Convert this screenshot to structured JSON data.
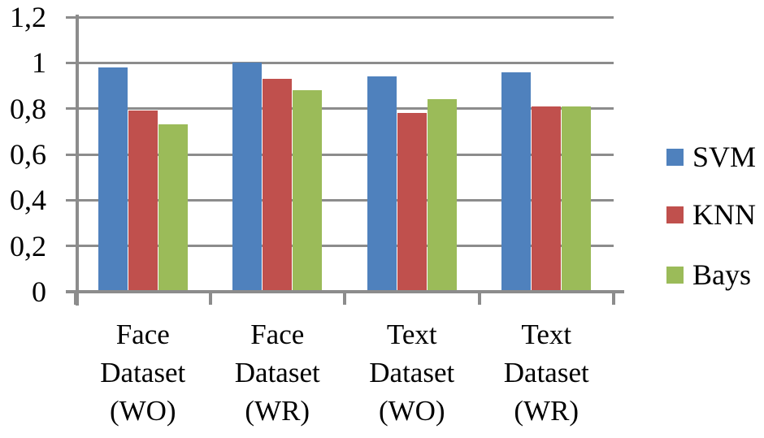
{
  "chart_data": {
    "type": "bar",
    "title": "",
    "xlabel": "",
    "ylabel": "",
    "categories": [
      "Face Dataset (WO)",
      "Face Dataset (WR)",
      "Text Dataset (WO)",
      "Text Dataset (WR)"
    ],
    "category_lines": [
      [
        "Face",
        "Dataset",
        "(WO)"
      ],
      [
        "Face",
        "Dataset",
        "(WR)"
      ],
      [
        "Text",
        "Dataset",
        "(WO)"
      ],
      [
        "Text",
        "Dataset",
        "(WR)"
      ]
    ],
    "series": [
      {
        "name": "SVM",
        "color": "#4F81BD",
        "values": [
          0.98,
          1.0,
          0.94,
          0.96
        ]
      },
      {
        "name": "KNN",
        "color": "#C0504D",
        "values": [
          0.79,
          0.93,
          0.78,
          0.81
        ]
      },
      {
        "name": "Bays",
        "color": "#9BBB59",
        "values": [
          0.73,
          0.88,
          0.84,
          0.81
        ]
      }
    ],
    "ylim": [
      0,
      1.2
    ],
    "ytick_step": 0.2,
    "yticks": [
      0,
      0.2,
      0.4,
      0.6,
      0.8,
      1.0,
      1.2
    ],
    "ytick_labels": [
      "0",
      "0,2",
      "0,4",
      "0,6",
      "0,8",
      "1",
      "1,2"
    ],
    "grid": true,
    "legend_position": "right"
  },
  "colors": {
    "axis": "#8C8C8C",
    "gridline": "#8C8C8C",
    "text": "#000000",
    "background": "#FFFFFF"
  }
}
